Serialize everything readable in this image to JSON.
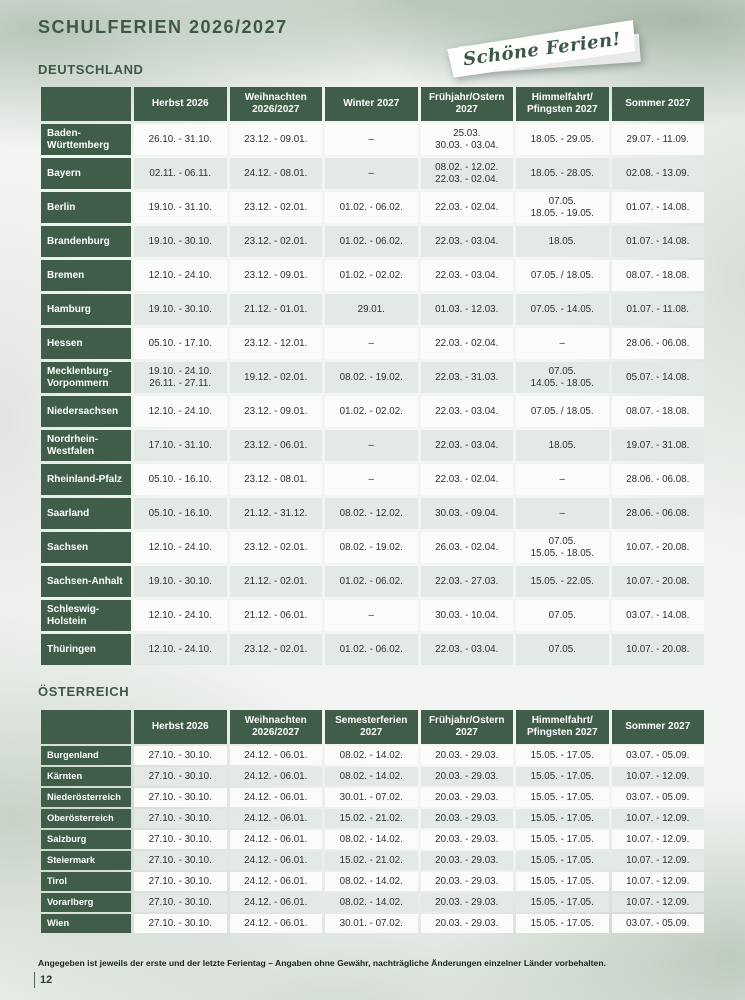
{
  "page": {
    "title": "SCHULFERIEN 2026/2027",
    "banner_text": "Schöne Ferien!",
    "footnote": "Angegeben ist jeweils der erste und der letzte Ferientag – Angaben ohne Gewähr, nachträgliche Änderungen einzelner Länder vorbehalten.",
    "page_number": "12"
  },
  "colors": {
    "dark_green": "#405d4a",
    "title_green": "#3c5846",
    "row_light": "#fbfcfa",
    "row_alt": "#e3e9e4"
  },
  "tables": [
    {
      "section": "DEUTSCHLAND",
      "headers": [
        "",
        "Herbst 2026",
        "Weihnachten\n2026/2027",
        "Winter 2027",
        "Frühjahr/Ostern\n2027",
        "Himmelfahrt/\nPfingsten 2027",
        "Sommer 2027"
      ],
      "rows": [
        {
          "label": "Baden-Württemberg",
          "cells": [
            "26.10. - 31.10.",
            "23.12. - 09.01.",
            "–",
            "25.03.\n30.03. - 03.04.",
            "18.05. - 29.05.",
            "29.07. - 11.09."
          ]
        },
        {
          "label": "Bayern",
          "cells": [
            "02.11. - 06.11.",
            "24.12. - 08.01.",
            "–",
            "08.02. - 12.02.\n22.03. - 02.04.",
            "18.05. - 28.05.",
            "02.08. - 13.09."
          ]
        },
        {
          "label": "Berlin",
          "cells": [
            "19.10. - 31.10.",
            "23.12. - 02.01.",
            "01.02. - 06.02.",
            "22.03. - 02.04.",
            "07.05.\n18.05. - 19.05.",
            "01.07. - 14.08."
          ]
        },
        {
          "label": "Brandenburg",
          "cells": [
            "19.10. - 30.10.",
            "23.12. - 02.01.",
            "01.02. - 06.02.",
            "22.03. - 03.04.",
            "18.05.",
            "01.07. - 14.08."
          ]
        },
        {
          "label": "Bremen",
          "cells": [
            "12.10. - 24.10.",
            "23.12. - 09.01.",
            "01.02. - 02.02.",
            "22.03. - 03.04.",
            "07.05. / 18.05.",
            "08.07. - 18.08."
          ]
        },
        {
          "label": "Hamburg",
          "cells": [
            "19.10. - 30.10.",
            "21.12. - 01.01.",
            "29.01.",
            "01.03. - 12.03.",
            "07.05. - 14.05.",
            "01.07. - 11.08."
          ]
        },
        {
          "label": "Hessen",
          "cells": [
            "05.10. - 17.10.",
            "23.12. - 12.01.",
            "–",
            "22.03. - 02.04.",
            "–",
            "28.06. - 06.08."
          ]
        },
        {
          "label": "Mecklenburg-Vorpommern",
          "cells": [
            "19.10. - 24.10.\n26.11. - 27.11.",
            "19.12. - 02.01.",
            "08.02. - 19.02.",
            "22.03. - 31.03.",
            "07.05.\n14.05. - 18.05.",
            "05.07. - 14.08."
          ]
        },
        {
          "label": "Niedersachsen",
          "cells": [
            "12.10. - 24.10.",
            "23.12. - 09.01.",
            "01.02. - 02.02.",
            "22.03. - 03.04.",
            "07.05. / 18.05.",
            "08.07. - 18.08."
          ]
        },
        {
          "label": "Nordrhein-Westfalen",
          "cells": [
            "17.10. - 31.10.",
            "23.12. - 06.01.",
            "–",
            "22.03. - 03.04.",
            "18.05.",
            "19.07. - 31.08."
          ]
        },
        {
          "label": "Rheinland-Pfalz",
          "cells": [
            "05.10. - 16.10.",
            "23.12. - 08.01.",
            "–",
            "22.03. - 02.04.",
            "–",
            "28.06. - 06.08."
          ]
        },
        {
          "label": "Saarland",
          "cells": [
            "05.10. - 16.10.",
            "21.12. - 31.12.",
            "08.02. - 12.02.",
            "30.03. - 09.04.",
            "–",
            "28.06. - 06.08."
          ]
        },
        {
          "label": "Sachsen",
          "cells": [
            "12.10. - 24.10.",
            "23.12. - 02.01.",
            "08.02. - 19.02.",
            "26.03. - 02.04.",
            "07.05.\n15.05. - 18.05.",
            "10.07. - 20.08."
          ]
        },
        {
          "label": "Sachsen-Anhalt",
          "cells": [
            "19.10. - 30.10.",
            "21.12. - 02.01.",
            "01.02. - 06.02.",
            "22.03. - 27.03.",
            "15.05. - 22.05.",
            "10.07. - 20.08."
          ]
        },
        {
          "label": "Schleswig-Holstein",
          "cells": [
            "12.10. - 24.10.",
            "21.12. - 06.01.",
            "–",
            "30.03. - 10.04.",
            "07.05.",
            "03.07. - 14.08."
          ]
        },
        {
          "label": "Thüringen",
          "cells": [
            "12.10. - 24.10.",
            "23.12. - 02.01.",
            "01.02. - 06.02.",
            "22.03. - 03.04.",
            "07.05.",
            "10.07. - 20.08."
          ]
        }
      ]
    },
    {
      "section": "ÖSTERREICH",
      "headers": [
        "",
        "Herbst 2026",
        "Weihnachten\n2026/2027",
        "Semesterferien\n2027",
        "Frühjahr/Ostern\n2027",
        "Himmelfahrt/\nPfingsten 2027",
        "Sommer 2027"
      ],
      "rows": [
        {
          "label": "Burgenland",
          "cells": [
            "27.10. - 30.10.",
            "24.12. - 06.01.",
            "08.02. - 14.02.",
            "20.03. - 29.03.",
            "15.05. - 17.05.",
            "03.07. - 05.09."
          ]
        },
        {
          "label": "Kärnten",
          "cells": [
            "27.10. - 30.10.",
            "24.12. - 06.01.",
            "08.02. - 14.02.",
            "20.03. - 29.03.",
            "15.05. - 17.05.",
            "10.07. - 12.09."
          ]
        },
        {
          "label": "Niederösterreich",
          "cells": [
            "27.10. - 30.10.",
            "24.12. - 06.01.",
            "30.01. - 07.02.",
            "20.03. - 29.03.",
            "15.05. - 17.05.",
            "03.07. - 05.09."
          ]
        },
        {
          "label": "Oberösterreich",
          "cells": [
            "27.10. - 30.10.",
            "24.12. - 06.01.",
            "15.02. - 21.02.",
            "20.03. - 29.03.",
            "15.05. - 17.05.",
            "10.07. - 12.09."
          ]
        },
        {
          "label": "Salzburg",
          "cells": [
            "27.10. - 30.10.",
            "24.12. - 06.01.",
            "08.02. - 14.02.",
            "20.03. - 29.03.",
            "15.05. - 17.05.",
            "10.07. - 12.09."
          ]
        },
        {
          "label": "Steiermark",
          "cells": [
            "27.10. - 30.10.",
            "24.12. - 06.01.",
            "15.02. - 21.02.",
            "20.03. - 29.03.",
            "15.05. - 17.05.",
            "10.07. - 12.09."
          ]
        },
        {
          "label": "Tirol",
          "cells": [
            "27.10. - 30.10.",
            "24.12. - 06.01.",
            "08.02. - 14.02.",
            "20.03. - 29.03.",
            "15.05. - 17.05.",
            "10.07. - 12.09."
          ]
        },
        {
          "label": "Vorarlberg",
          "cells": [
            "27.10. - 30.10.",
            "24.12. - 06.01.",
            "08.02. - 14.02.",
            "20.03. - 29.03.",
            "15.05. - 17.05.",
            "10.07. - 12.09."
          ]
        },
        {
          "label": "Wien",
          "cells": [
            "27.10. - 30.10.",
            "24.12. - 06.01.",
            "30.01. - 07.02.",
            "20.03. - 29.03.",
            "15.05. - 17.05.",
            "03.07. - 05.09."
          ]
        }
      ]
    }
  ]
}
